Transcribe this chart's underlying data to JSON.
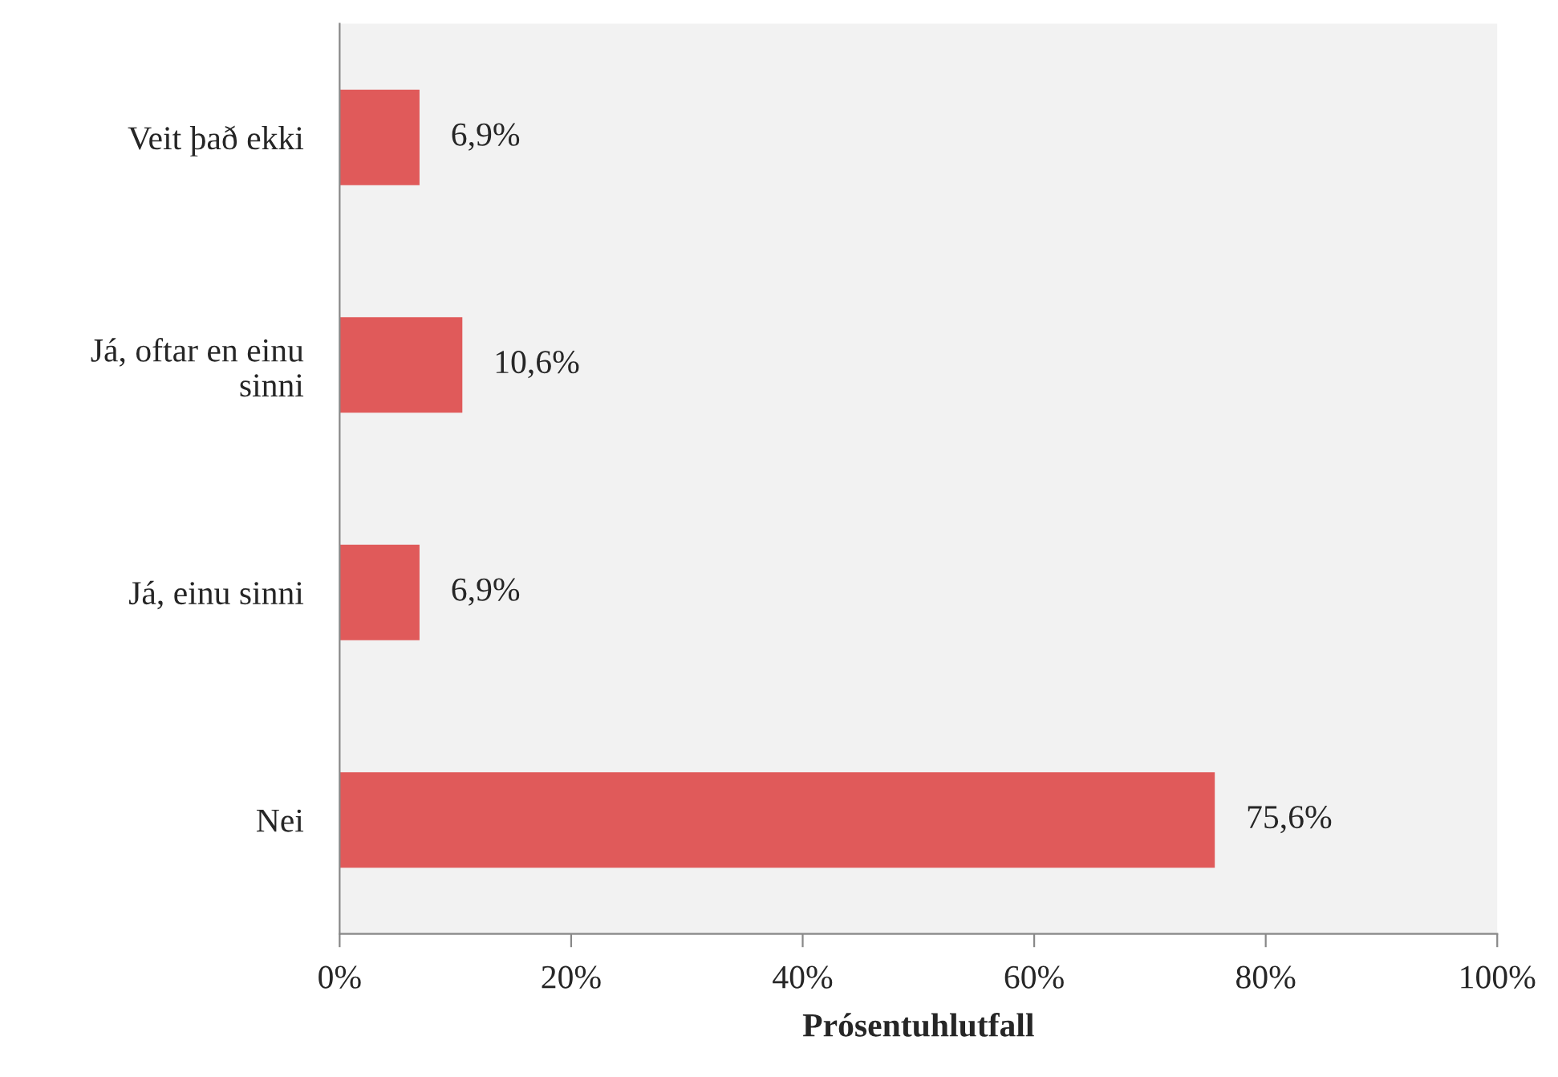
{
  "chart_data": {
    "type": "bar",
    "orientation": "horizontal",
    "xlabel": "Prósentuhlutfall",
    "categories": [
      "Veit það ekki",
      "Já, oftar en einu sinni",
      "Já, einu sinni",
      "Nei"
    ],
    "values": [
      6.9,
      10.6,
      6.9,
      75.6
    ],
    "value_labels": [
      "6,9%",
      "10,6%",
      "6,9%",
      "75,6%"
    ],
    "color": "#e05a5a",
    "xlim": [
      0,
      100
    ],
    "xticks": [
      {
        "value": 0,
        "label": "0%"
      },
      {
        "value": 20,
        "label": "20%"
      },
      {
        "value": 40,
        "label": "40%"
      },
      {
        "value": 60,
        "label": "60%"
      },
      {
        "value": 80,
        "label": "80%"
      },
      {
        "value": 100,
        "label": "100%"
      }
    ],
    "grid": false,
    "legend": false
  }
}
